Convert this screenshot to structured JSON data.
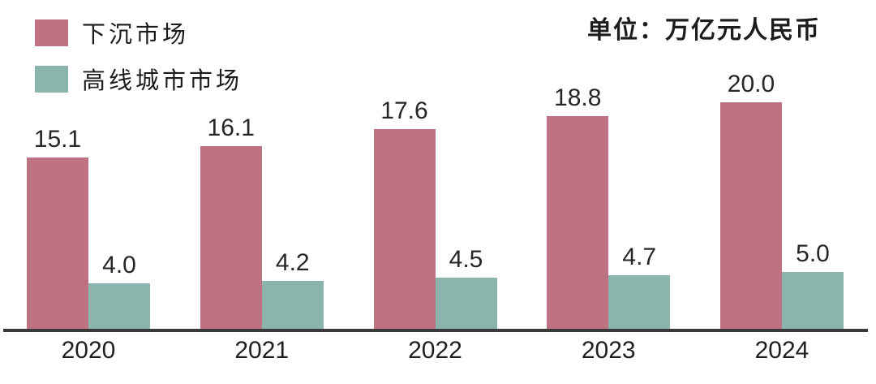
{
  "chart_data": {
    "type": "bar",
    "categories": [
      "2020",
      "2021",
      "2022",
      "2023",
      "2024"
    ],
    "series": [
      {
        "key": "lower-tier-market",
        "name": "下沉市场",
        "color": "#bf7282",
        "values": [
          15.1,
          16.1,
          17.6,
          18.8,
          20.0
        ]
      },
      {
        "key": "high-line-city-market",
        "name": "高线城市市场",
        "color": "#8bb4ad",
        "values": [
          4.0,
          4.2,
          4.5,
          4.7,
          5.0
        ]
      }
    ],
    "unit_label": "单位：万亿元人民币",
    "title": "",
    "xlabel": "",
    "ylabel": "",
    "ylim": [
      0,
      20.0
    ],
    "grid": false,
    "legend_position": "top-left",
    "value_labels": true,
    "value_decimals": 1
  },
  "colors": {
    "background": "#ffffff",
    "axis": "#3a3a3a",
    "text": "#1c1c1c",
    "value_text": "#262626"
  }
}
